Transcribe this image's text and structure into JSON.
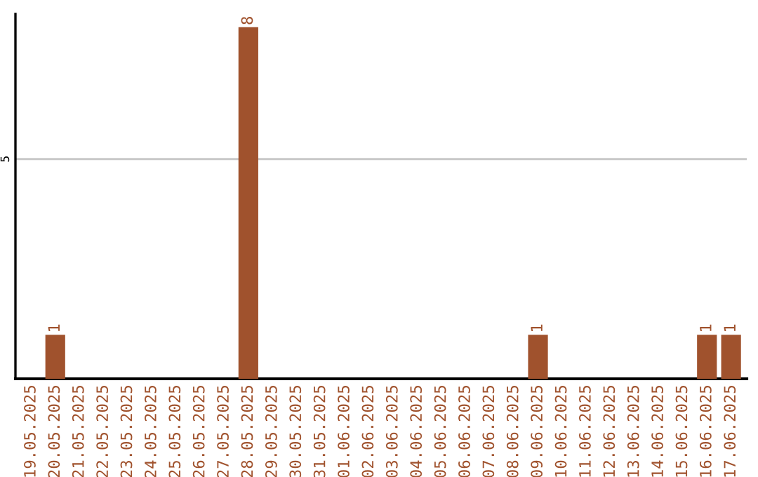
{
  "chart_data": {
    "type": "bar",
    "categories": [
      "19.05.2025",
      "20.05.2025",
      "21.05.2025",
      "22.05.2025",
      "23.05.2025",
      "24.05.2025",
      "25.05.2025",
      "26.05.2025",
      "27.05.2025",
      "28.05.2025",
      "29.05.2025",
      "30.05.2025",
      "31.05.2025",
      "01.06.2025",
      "02.06.2025",
      "03.06.2025",
      "04.06.2025",
      "05.06.2025",
      "06.06.2025",
      "07.06.2025",
      "08.06.2025",
      "09.06.2025",
      "10.06.2025",
      "11.06.2025",
      "12.06.2025",
      "13.06.2025",
      "14.06.2025",
      "15.06.2025",
      "16.06.2025",
      "17.06.2025"
    ],
    "values": [
      0,
      1,
      0,
      0,
      0,
      0,
      0,
      0,
      0,
      8,
      0,
      0,
      0,
      0,
      0,
      0,
      0,
      0,
      0,
      0,
      0,
      1,
      0,
      0,
      0,
      0,
      0,
      0,
      1,
      1
    ],
    "value_labels": [
      null,
      "1",
      null,
      null,
      null,
      null,
      null,
      null,
      null,
      "8",
      null,
      null,
      null,
      null,
      null,
      null,
      null,
      null,
      null,
      null,
      null,
      "1",
      null,
      null,
      null,
      null,
      null,
      null,
      "1",
      "1"
    ],
    "color": "#a0522d",
    "ylim": [
      0,
      8.3
    ],
    "yticks": [
      5
    ],
    "grid": "y"
  }
}
